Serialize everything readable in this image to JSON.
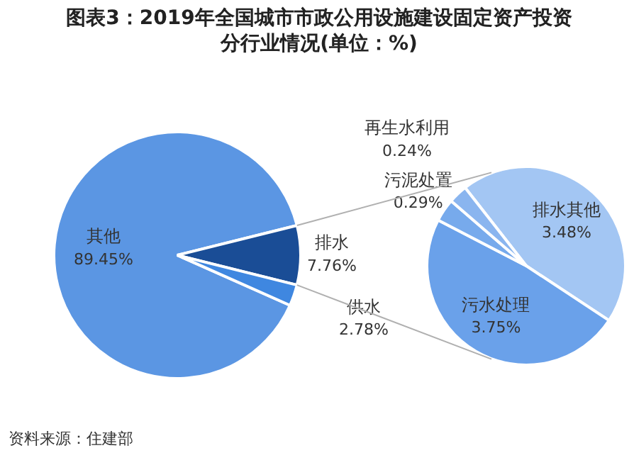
{
  "chart_data": [
    {
      "type": "pie",
      "title": "图表3：2019年全国城市市政公用设施建设固定资产投资分行业情况(单位：%)",
      "categories": [
        "其他",
        "排水",
        "供水"
      ],
      "values": [
        89.45,
        7.76,
        2.78
      ],
      "colors": [
        "#5b96e3",
        "#1a4d96",
        "#3f87e0"
      ],
      "value_labels": [
        "89.45%",
        "7.76%",
        "2.78%"
      ],
      "legend": false,
      "annotations": [
        "资料来源：住建部"
      ]
    },
    {
      "type": "pie",
      "categories": [
        "排水其他",
        "污水处理",
        "污泥处置",
        "再生水利用"
      ],
      "values": [
        3.48,
        3.75,
        0.29,
        0.24
      ],
      "colors": [
        "#a3c6f3",
        "#6aa1ea",
        "#77aaec",
        "#8ab5ef"
      ],
      "value_labels": [
        "3.48%",
        "3.75%",
        "0.29%",
        "0.24%"
      ],
      "legend": false
    }
  ]
}
